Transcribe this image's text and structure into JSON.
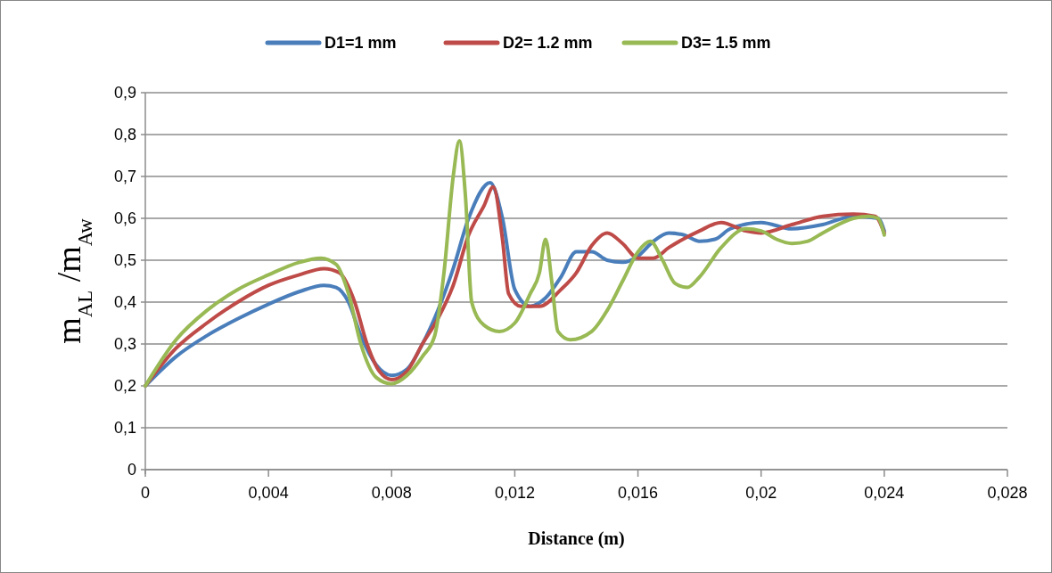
{
  "chart_data": {
    "type": "line",
    "xlabel": "Distance (m)",
    "ylabel": "m$_{AL}$ /m$_{Aw}$",
    "xlim": [
      0,
      0.028
    ],
    "xticks": [
      0,
      {
        "value": 0.004,
        "label": "0,004"
      },
      {
        "value": 0.008,
        "label": "0,008"
      },
      {
        "value": 0.012,
        "label": "0,012"
      },
      {
        "value": 0.016,
        "label": "0,016"
      },
      {
        "value": 0.02,
        "label": "0,02"
      },
      {
        "value": 0.024,
        "label": "0,024"
      },
      {
        "value": 0.028,
        "label": "0,028"
      }
    ],
    "ylim": [
      0,
      0.9
    ],
    "yticks": [
      0,
      {
        "value": 0.1,
        "label": "0,1"
      },
      {
        "value": 0.2,
        "label": "0,2"
      },
      {
        "value": 0.3,
        "label": "0,3"
      },
      {
        "value": 0.4,
        "label": "0,4"
      },
      {
        "value": 0.5,
        "label": "0,5"
      },
      {
        "value": 0.6,
        "label": "0,6"
      },
      {
        "value": 0.7,
        "label": "0,7"
      },
      {
        "value": 0.8,
        "label": "0,8"
      },
      {
        "value": 0.9,
        "label": "0,9"
      }
    ],
    "grid": "y",
    "legend": "top",
    "marker": "none",
    "line_style": "solid",
    "series": [
      {
        "name": "D1=1 mm",
        "color": "#4a7ebb",
        "x": [
          0,
          0.001,
          0.002,
          0.003,
          0.004,
          0.005,
          0.0058,
          0.0062,
          0.0066,
          0.007,
          0.0075,
          0.008,
          0.0085,
          0.009,
          0.0095,
          0.01,
          0.0105,
          0.0112,
          0.0116,
          0.012,
          0.0125,
          0.013,
          0.0135,
          0.014,
          0.0145,
          0.015,
          0.0155,
          0.016,
          0.0165,
          0.017,
          0.0175,
          0.018,
          0.0185,
          0.019,
          0.02,
          0.021,
          0.022,
          0.023,
          0.0238,
          0.024
        ],
        "values": [
          0.2,
          0.27,
          0.32,
          0.36,
          0.395,
          0.425,
          0.44,
          0.435,
          0.4,
          0.32,
          0.25,
          0.225,
          0.24,
          0.3,
          0.38,
          0.48,
          0.6,
          0.685,
          0.6,
          0.43,
          0.39,
          0.41,
          0.46,
          0.52,
          0.52,
          0.5,
          0.495,
          0.51,
          0.545,
          0.565,
          0.56,
          0.545,
          0.55,
          0.575,
          0.59,
          0.575,
          0.585,
          0.605,
          0.6,
          0.57
        ]
      },
      {
        "name": "D2= 1.2 mm",
        "color": "#be4b48",
        "x": [
          0,
          0.001,
          0.002,
          0.003,
          0.004,
          0.005,
          0.0058,
          0.0063,
          0.0068,
          0.0072,
          0.0076,
          0.008,
          0.0085,
          0.009,
          0.0095,
          0.01,
          0.0105,
          0.011,
          0.0113,
          0.0116,
          0.0118,
          0.0122,
          0.0128,
          0.0135,
          0.014,
          0.0145,
          0.015,
          0.0155,
          0.016,
          0.0165,
          0.017,
          0.018,
          0.0187,
          0.0195,
          0.02,
          0.021,
          0.022,
          0.023,
          0.0237,
          0.024
        ],
        "values": [
          0.2,
          0.29,
          0.35,
          0.4,
          0.44,
          0.465,
          0.48,
          0.47,
          0.4,
          0.3,
          0.235,
          0.215,
          0.235,
          0.3,
          0.36,
          0.44,
          0.56,
          0.63,
          0.675,
          0.55,
          0.42,
          0.39,
          0.39,
          0.43,
          0.47,
          0.535,
          0.565,
          0.54,
          0.505,
          0.505,
          0.53,
          0.57,
          0.59,
          0.57,
          0.565,
          0.585,
          0.605,
          0.61,
          0.605,
          0.565
        ]
      },
      {
        "name": "D3= 1.5 mm",
        "color": "#98b954",
        "x": [
          0,
          0.001,
          0.002,
          0.003,
          0.004,
          0.005,
          0.0057,
          0.0062,
          0.0066,
          0.007,
          0.0075,
          0.008,
          0.0085,
          0.009,
          0.0094,
          0.0097,
          0.01,
          0.0102,
          0.0104,
          0.0106,
          0.011,
          0.0115,
          0.012,
          0.0125,
          0.0128,
          0.013,
          0.0132,
          0.0134,
          0.0138,
          0.0145,
          0.015,
          0.0155,
          0.016,
          0.0164,
          0.0168,
          0.0172,
          0.0176,
          0.018,
          0.0187,
          0.0195,
          0.02,
          0.0205,
          0.021,
          0.0215,
          0.022,
          0.023,
          0.0235,
          0.0238,
          0.024
        ],
        "values": [
          0.2,
          0.31,
          0.38,
          0.43,
          0.465,
          0.495,
          0.505,
          0.49,
          0.42,
          0.3,
          0.22,
          0.205,
          0.225,
          0.27,
          0.32,
          0.47,
          0.7,
          0.785,
          0.65,
          0.4,
          0.345,
          0.33,
          0.35,
          0.42,
          0.47,
          0.55,
          0.45,
          0.33,
          0.31,
          0.33,
          0.38,
          0.45,
          0.52,
          0.545,
          0.5,
          0.445,
          0.435,
          0.46,
          0.53,
          0.575,
          0.57,
          0.55,
          0.54,
          0.545,
          0.565,
          0.6,
          0.605,
          0.6,
          0.56
        ]
      }
    ]
  }
}
